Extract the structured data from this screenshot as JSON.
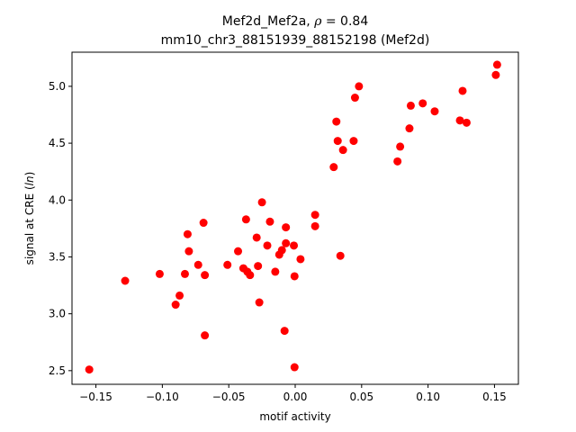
{
  "chart_data": {
    "type": "scatter",
    "title_line1_prefix": "Mef2d_Mef2a, ",
    "title_rho_symbol": "ρ",
    "title_rho_value": " = 0.84",
    "title_line2": "mm10_chr3_88151939_88152198 (Mef2d)",
    "xlabel": "motif activity",
    "ylabel_prefix": "signal at CRE (",
    "ylabel_italic": "ln",
    "ylabel_suffix": ")",
    "xlim": [
      -0.168,
      0.168
    ],
    "ylim": [
      2.38,
      5.3
    ],
    "x_ticks": [
      -0.15,
      -0.1,
      -0.05,
      0.0,
      0.05,
      0.1,
      0.15
    ],
    "x_tick_labels": [
      "−0.15",
      "−0.10",
      "−0.05",
      "0.00",
      "0.05",
      "0.10",
      "0.15"
    ],
    "y_ticks": [
      2.5,
      3.0,
      3.5,
      4.0,
      4.5,
      5.0
    ],
    "y_tick_labels": [
      "2.5",
      "3.0",
      "3.5",
      "4.0",
      "4.5",
      "5.0"
    ],
    "marker_color": "#ff0000",
    "grid": false,
    "points": [
      {
        "x": -0.155,
        "y": 2.51
      },
      {
        "x": -0.128,
        "y": 3.29
      },
      {
        "x": -0.102,
        "y": 3.35
      },
      {
        "x": -0.09,
        "y": 3.08
      },
      {
        "x": -0.087,
        "y": 3.16
      },
      {
        "x": -0.083,
        "y": 3.35
      },
      {
        "x": -0.081,
        "y": 3.7
      },
      {
        "x": -0.08,
        "y": 3.55
      },
      {
        "x": -0.073,
        "y": 3.43
      },
      {
        "x": -0.069,
        "y": 3.8
      },
      {
        "x": -0.068,
        "y": 3.34
      },
      {
        "x": -0.068,
        "y": 2.81
      },
      {
        "x": -0.051,
        "y": 3.43
      },
      {
        "x": -0.043,
        "y": 3.55
      },
      {
        "x": -0.039,
        "y": 3.4
      },
      {
        "x": -0.037,
        "y": 3.83
      },
      {
        "x": -0.036,
        "y": 3.37
      },
      {
        "x": -0.034,
        "y": 3.34
      },
      {
        "x": -0.029,
        "y": 3.67
      },
      {
        "x": -0.028,
        "y": 3.42
      },
      {
        "x": -0.027,
        "y": 3.1
      },
      {
        "x": -0.025,
        "y": 3.98
      },
      {
        "x": -0.021,
        "y": 3.6
      },
      {
        "x": -0.019,
        "y": 3.81
      },
      {
        "x": -0.015,
        "y": 3.37
      },
      {
        "x": -0.012,
        "y": 3.52
      },
      {
        "x": -0.01,
        "y": 3.56
      },
      {
        "x": -0.008,
        "y": 2.85
      },
      {
        "x": -0.007,
        "y": 3.76
      },
      {
        "x": -0.007,
        "y": 3.62
      },
      {
        "x": -0.001,
        "y": 3.6
      },
      {
        "x": -0.0005,
        "y": 3.33
      },
      {
        "x": -0.0005,
        "y": 2.53
      },
      {
        "x": 0.004,
        "y": 3.48
      },
      {
        "x": 0.015,
        "y": 3.87
      },
      {
        "x": 0.015,
        "y": 3.77
      },
      {
        "x": 0.029,
        "y": 4.29
      },
      {
        "x": 0.031,
        "y": 4.69
      },
      {
        "x": 0.032,
        "y": 4.52
      },
      {
        "x": 0.034,
        "y": 3.51
      },
      {
        "x": 0.036,
        "y": 4.44
      },
      {
        "x": 0.044,
        "y": 4.52
      },
      {
        "x": 0.045,
        "y": 4.9
      },
      {
        "x": 0.048,
        "y": 5.0
      },
      {
        "x": 0.077,
        "y": 4.34
      },
      {
        "x": 0.079,
        "y": 4.47
      },
      {
        "x": 0.086,
        "y": 4.63
      },
      {
        "x": 0.087,
        "y": 4.83
      },
      {
        "x": 0.096,
        "y": 4.85
      },
      {
        "x": 0.105,
        "y": 4.78
      },
      {
        "x": 0.124,
        "y": 4.7
      },
      {
        "x": 0.126,
        "y": 4.96
      },
      {
        "x": 0.129,
        "y": 4.68
      },
      {
        "x": 0.151,
        "y": 5.1
      },
      {
        "x": 0.152,
        "y": 5.19
      }
    ]
  }
}
